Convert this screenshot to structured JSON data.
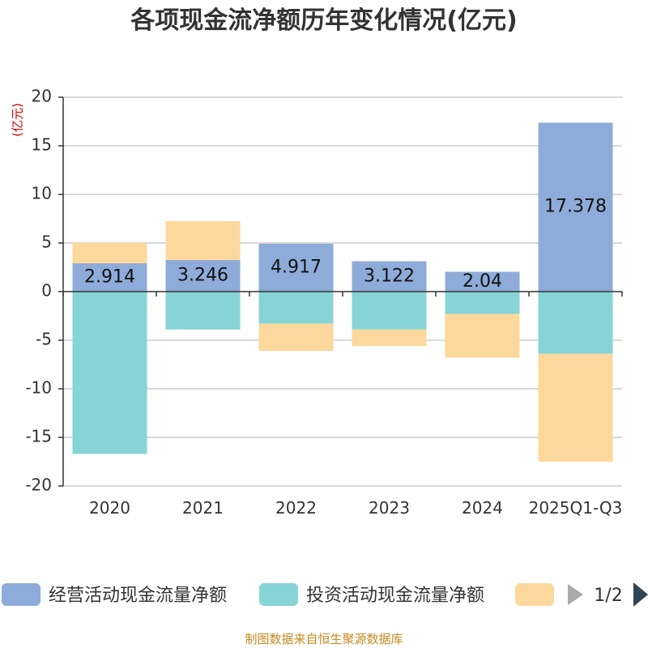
{
  "chart_data": {
    "type": "bar",
    "stacked": true,
    "title": "各项现金流净额历年变化情况(亿元)",
    "ylabel": "(亿元)",
    "ylim": [
      -20,
      20
    ],
    "yticks": [
      20,
      15,
      10,
      5,
      0,
      -5,
      -10,
      -15,
      -20
    ],
    "categories": [
      "2020",
      "2021",
      "2022",
      "2023",
      "2024",
      "2025Q1-Q3"
    ],
    "series": [
      {
        "name": "经营活动现金流量净额",
        "color": "#8eacd9",
        "values": [
          2.914,
          3.246,
          4.917,
          3.122,
          2.04,
          17.378
        ],
        "labels": [
          "2.914",
          "3.246",
          "4.917",
          "3.122",
          "2.04",
          "17.378"
        ]
      },
      {
        "name": "投资活动现金流量净额",
        "color": "#86d4d6",
        "values": [
          -16.7,
          -3.9,
          -3.3,
          -3.9,
          -2.3,
          -6.4
        ]
      },
      {
        "name": "",
        "color": "#fdd89c",
        "values": [
          2.1,
          4.0,
          -2.8,
          -1.7,
          -4.5,
          -11.1
        ]
      }
    ]
  },
  "legend": {
    "page": "1/2",
    "prev_icon": "triangle-left-icon",
    "next_icon": "triangle-right-icon"
  },
  "source": "制图数据来自恒生聚源数据库"
}
